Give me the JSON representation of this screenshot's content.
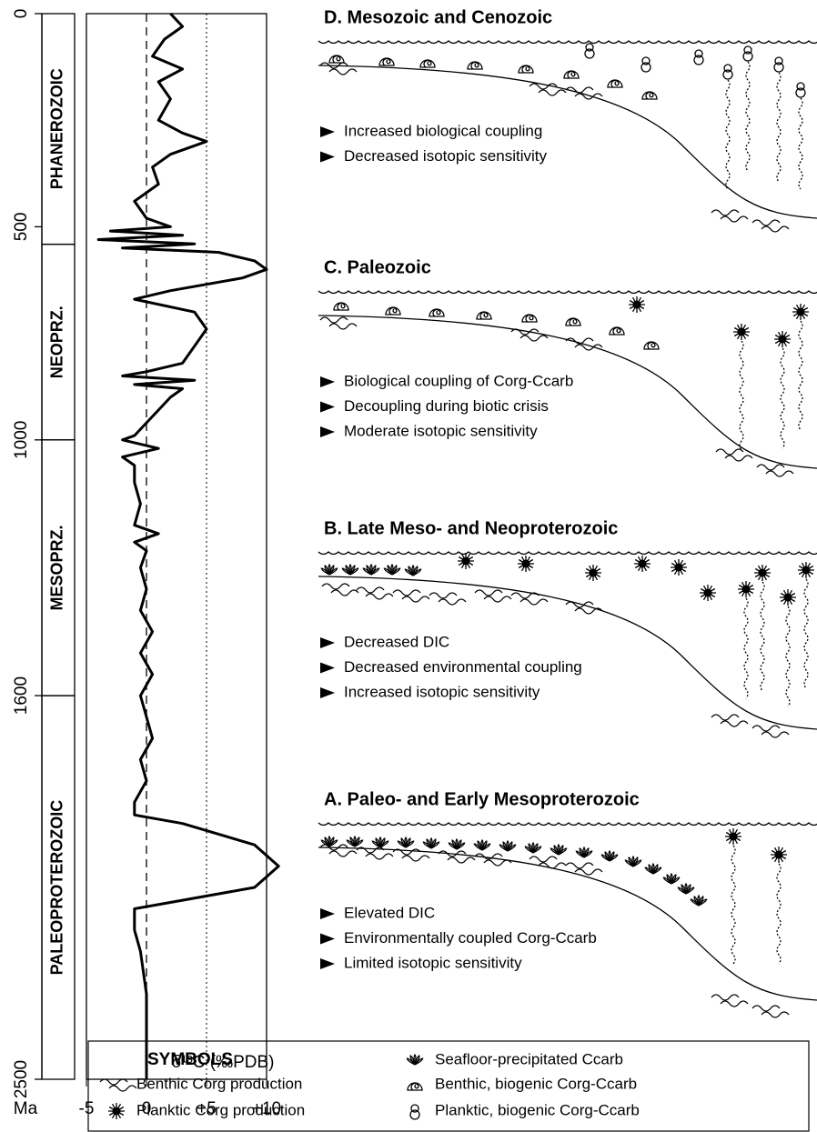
{
  "chart_data": {
    "type": "line",
    "x_label": "Ma",
    "y_label": "δ¹³C (‰PDB)",
    "x": [
      0,
      30,
      60,
      100,
      130,
      160,
      200,
      250,
      280,
      300,
      330,
      360,
      400,
      440,
      480,
      500,
      510,
      520,
      530,
      540,
      550,
      560,
      580,
      600,
      620,
      650,
      670,
      700,
      740,
      780,
      820,
      840,
      850,
      860,
      870,
      880,
      900,
      930,
      960,
      990,
      1000,
      1020,
      1040,
      1060,
      1100,
      1150,
      1200,
      1220,
      1240,
      1260,
      1300,
      1350,
      1400,
      1450,
      1500,
      1550,
      1600,
      1650,
      1700,
      1750,
      1800,
      1850,
      1880,
      1900,
      1950,
      2000,
      2050,
      2080,
      2100,
      2150,
      2200,
      2300,
      2400,
      2500
    ],
    "values": [
      2,
      3,
      1.5,
      0.5,
      3,
      1,
      2,
      1,
      3,
      5,
      2,
      0.5,
      1,
      -1,
      0,
      2,
      -3,
      3,
      -4,
      4,
      -2,
      6,
      9,
      10,
      8,
      2,
      -1,
      4,
      5,
      4,
      3,
      0,
      -2,
      4,
      -1,
      3,
      2,
      1,
      0,
      -1,
      -2,
      1,
      -2,
      -1,
      -1,
      -0.5,
      -1,
      1,
      -1,
      0,
      -0.5,
      0,
      -0.5,
      0.5,
      -0.5,
      0.5,
      -0.5,
      0,
      0.5,
      -0.5,
      0,
      -1,
      -1,
      3,
      9,
      11,
      9,
      3,
      -1,
      -1,
      -0.5,
      0,
      0,
      0
    ],
    "color": "#000000",
    "xlim": [
      0,
      2500
    ],
    "xticks": [
      0,
      500,
      1000,
      1600,
      2500
    ],
    "ylim": [
      -5,
      10
    ],
    "yticks": [
      -5,
      0,
      {
        "value": 5,
        "label": "+5"
      },
      {
        "value": 10,
        "label": "+10"
      }
    ],
    "grid": true,
    "eras": [
      {
        "name": "PHANEROZOIC",
        "start": 0,
        "end": 541
      },
      {
        "name": "NEOPRZ.",
        "start": 541,
        "end": 1000
      },
      {
        "name": "MESOPRZ.",
        "start": 1000,
        "end": 1600
      },
      {
        "name": "PALEOPROTEROZOIC",
        "start": 1600,
        "end": 2500
      }
    ]
  },
  "panels": [
    {
      "title": "D. Mesozoic and Cenozoic",
      "bullets": [
        "Increased biological coupling",
        "Decreased isotopic sensitivity"
      ]
    },
    {
      "title": "C. Paleozoic",
      "bullets": [
        "Biological coupling of Corg-Ccarb",
        "Decoupling during biotic crisis",
        "Moderate isotopic sensitivity"
      ]
    },
    {
      "title": "B. Late Meso- and Neoproterozoic",
      "bullets": [
        "Decreased DIC",
        "Decreased environmental coupling",
        "Increased isotopic sensitivity"
      ]
    },
    {
      "title": "A. Paleo- and Early Mesoproterozoic",
      "bullets": [
        "Elevated DIC",
        "Environmentally coupled Corg-Ccarb",
        "Limited isotopic sensitivity"
      ]
    }
  ],
  "legend": {
    "title": "SYMBOLS",
    "items": [
      "Benthic Corg production",
      "Planktic Corg production",
      "Seafloor-precipitated Ccarb",
      "Benthic, biogenic Corg-Ccarb",
      "Planktic, biogenic Corg-Ccarb"
    ]
  }
}
